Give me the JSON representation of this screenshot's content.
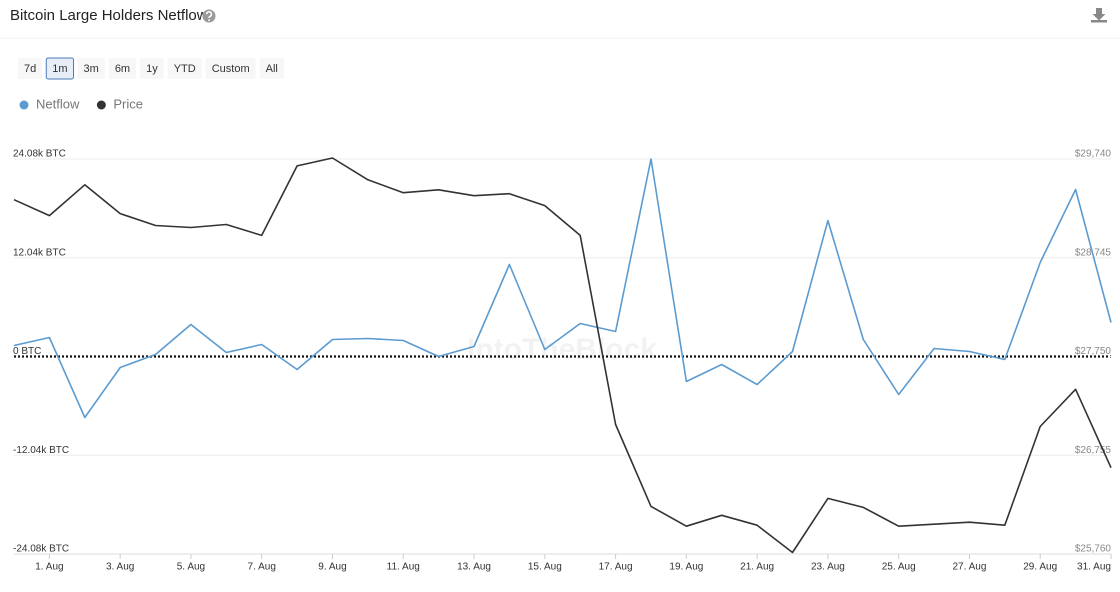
{
  "chart_data": {
    "type": "line",
    "title": "Bitcoin Large Holders Netflow",
    "range_buttons": [
      "7d",
      "1m",
      "3m",
      "6m",
      "1y",
      "YTD",
      "Custom",
      "All"
    ],
    "selected_range": 1,
    "watermark": "IntoTheBlock",
    "categories": [
      null,
      "1. Aug",
      null,
      "3. Aug",
      null,
      "5. Aug",
      null,
      "7. Aug",
      null,
      "9. Aug",
      null,
      "11. Aug",
      null,
      "13. Aug",
      null,
      "15. Aug",
      null,
      "17. Aug",
      null,
      "19. Aug",
      null,
      "21. Aug",
      null,
      "23. Aug",
      null,
      "25. Aug",
      null,
      "27. Aug",
      null,
      "29. Aug",
      null,
      "31. Aug"
    ],
    "series": [
      {
        "name": "Netflow",
        "color": "#5b9bd0",
        "axis": "y",
        "values": [
          1340,
          2320,
          -7440,
          -1340,
          240,
          3900,
          490,
          1460,
          -1580,
          2070,
          2190,
          1950,
          0,
          1220,
          11220,
          850,
          4020,
          3050,
          24080,
          -3050,
          -980,
          -3410,
          610,
          16580,
          2070,
          -4630,
          980,
          610,
          -370,
          11460,
          20360,
          4140
        ]
      },
      {
        "name": "Price",
        "color": "#333333",
        "axis": "y2",
        "values": [
          29330,
          29170,
          29480,
          29190,
          29070,
          29050,
          29080,
          28970,
          29670,
          29750,
          29530,
          29400,
          29430,
          29370,
          29390,
          29270,
          28970,
          27065,
          26240,
          26040,
          26150,
          26050,
          25775,
          26320,
          26230,
          26040,
          26060,
          26080,
          26050,
          27045,
          27420,
          26630
        ]
      }
    ],
    "ylim": [
      -24080,
      24080
    ],
    "yticks": [
      {
        "value": 24080,
        "label": "24.08k BTC"
      },
      {
        "value": 12040,
        "label": "12.04k BTC"
      },
      {
        "value": 0,
        "label": "0 BTC"
      },
      {
        "value": -12040,
        "label": "-12.04k BTC"
      },
      {
        "value": -24080,
        "label": "-24.08k BTC"
      }
    ],
    "y2lim": [
      25760,
      29740
    ],
    "y2ticks": [
      {
        "value": 29740,
        "label": "$29,740"
      },
      {
        "value": 28745,
        "label": "$28,745"
      },
      {
        "value": 27750,
        "label": "$27,750"
      },
      {
        "value": 26755,
        "label": "$26,755"
      },
      {
        "value": 25760,
        "label": "$25,760"
      }
    ],
    "grid": true,
    "zero_line": true
  }
}
